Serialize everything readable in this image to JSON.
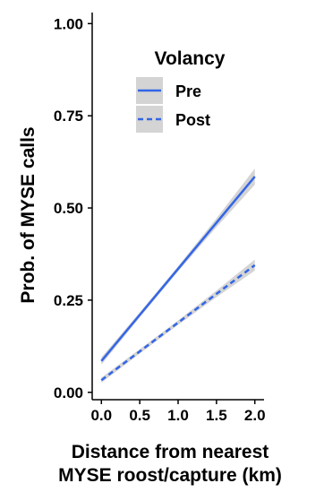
{
  "chart_data": {
    "type": "line",
    "xlabel_line1": "Distance from nearest",
    "xlabel_line2": "MYSE roost/capture (km)",
    "ylabel": "Prob. of MYSE calls",
    "xlim": [
      -0.12,
      2.12
    ],
    "ylim": [
      -0.02,
      1.03
    ],
    "x_ticks": [
      0.0,
      0.5,
      1.0,
      1.5,
      2.0
    ],
    "x_tick_labels": [
      "0.0",
      "0.5",
      "1.0",
      "1.5",
      "2.0"
    ],
    "y_ticks": [
      0.0,
      0.25,
      0.5,
      0.75,
      1.0
    ],
    "y_tick_labels": [
      "0.00",
      "0.25",
      "0.50",
      "0.75",
      "1.00"
    ],
    "grid": false,
    "legend": {
      "title": "Volancy",
      "placement": "top-right",
      "entries": [
        "Pre",
        "Post"
      ]
    },
    "series": [
      {
        "name": "Pre",
        "line_style": "solid",
        "color": "#3366e6",
        "band_color": "#d4d4d4",
        "x": [
          0.0,
          0.5,
          1.0,
          1.5,
          2.0
        ],
        "y": [
          0.085,
          0.21,
          0.335,
          0.46,
          0.585
        ],
        "lower": [
          0.075,
          0.203,
          0.328,
          0.448,
          0.563
        ],
        "upper": [
          0.095,
          0.217,
          0.342,
          0.472,
          0.607
        ]
      },
      {
        "name": "Post",
        "line_style": "dashed",
        "color": "#3366e6",
        "band_color": "#d4d4d4",
        "x": [
          0.0,
          0.5,
          1.0,
          1.5,
          2.0
        ],
        "y": [
          0.033,
          0.111,
          0.189,
          0.267,
          0.345
        ],
        "lower": [
          0.026,
          0.105,
          0.183,
          0.258,
          0.33
        ],
        "upper": [
          0.04,
          0.117,
          0.195,
          0.276,
          0.36
        ]
      }
    ]
  }
}
